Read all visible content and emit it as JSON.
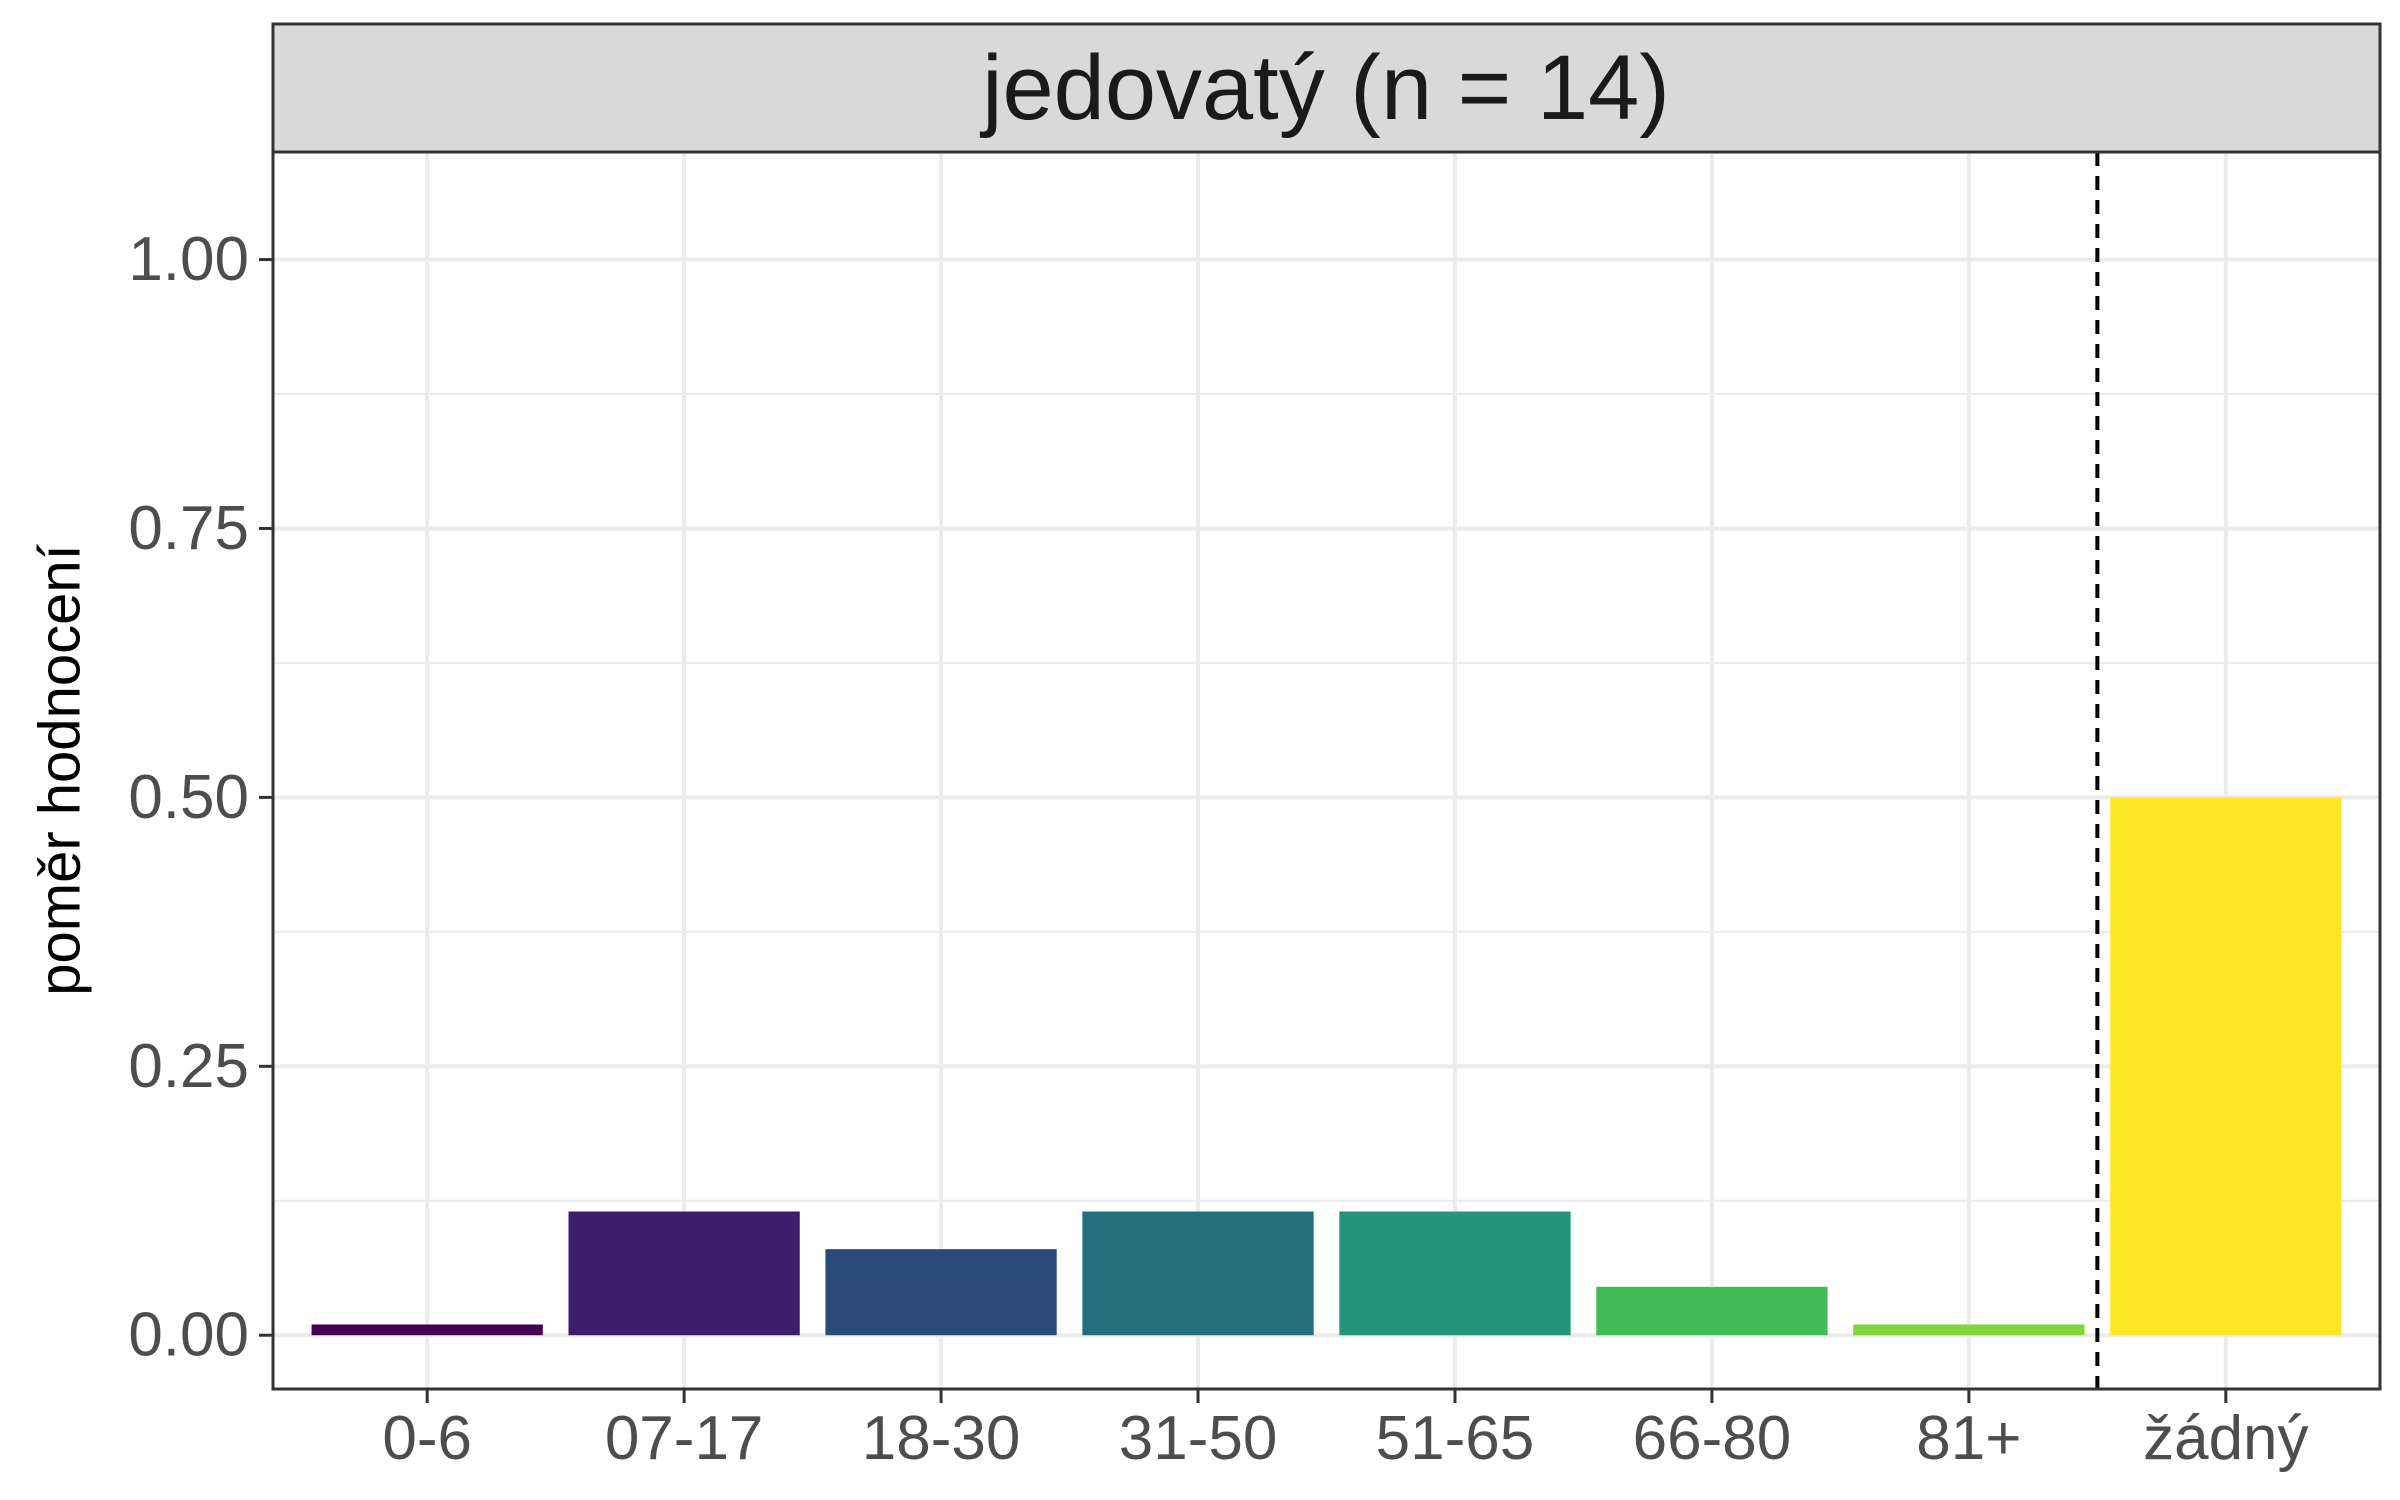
{
  "chart_data": {
    "type": "bar",
    "facet_title": "jedovatý (n = 14)",
    "ylabel": "poměr hodnocení",
    "xlabel": "",
    "ylim": [
      -0.05,
      1.1
    ],
    "y_ticks": [
      0,
      0.25,
      0.5,
      0.75,
      1.0
    ],
    "y_tick_labels": [
      "0.00",
      "0.25",
      "0.50",
      "0.75",
      "1.00"
    ],
    "grid": true,
    "legend": "none",
    "categories": [
      "0-6",
      "07-17",
      "18-30",
      "31-50",
      "51-65",
      "66-80",
      "81+",
      "žádný"
    ],
    "values": [
      0.01,
      0.115,
      0.08,
      0.115,
      0.115,
      0.045,
      0.01,
      0.5
    ],
    "colors": [
      "#440154",
      "#3B1F6B",
      "#2A4A7A",
      "#226E7A",
      "#22957A",
      "#43BB57",
      "#84D43C",
      "#FDE725"
    ],
    "reference_line_after_index": 6
  }
}
